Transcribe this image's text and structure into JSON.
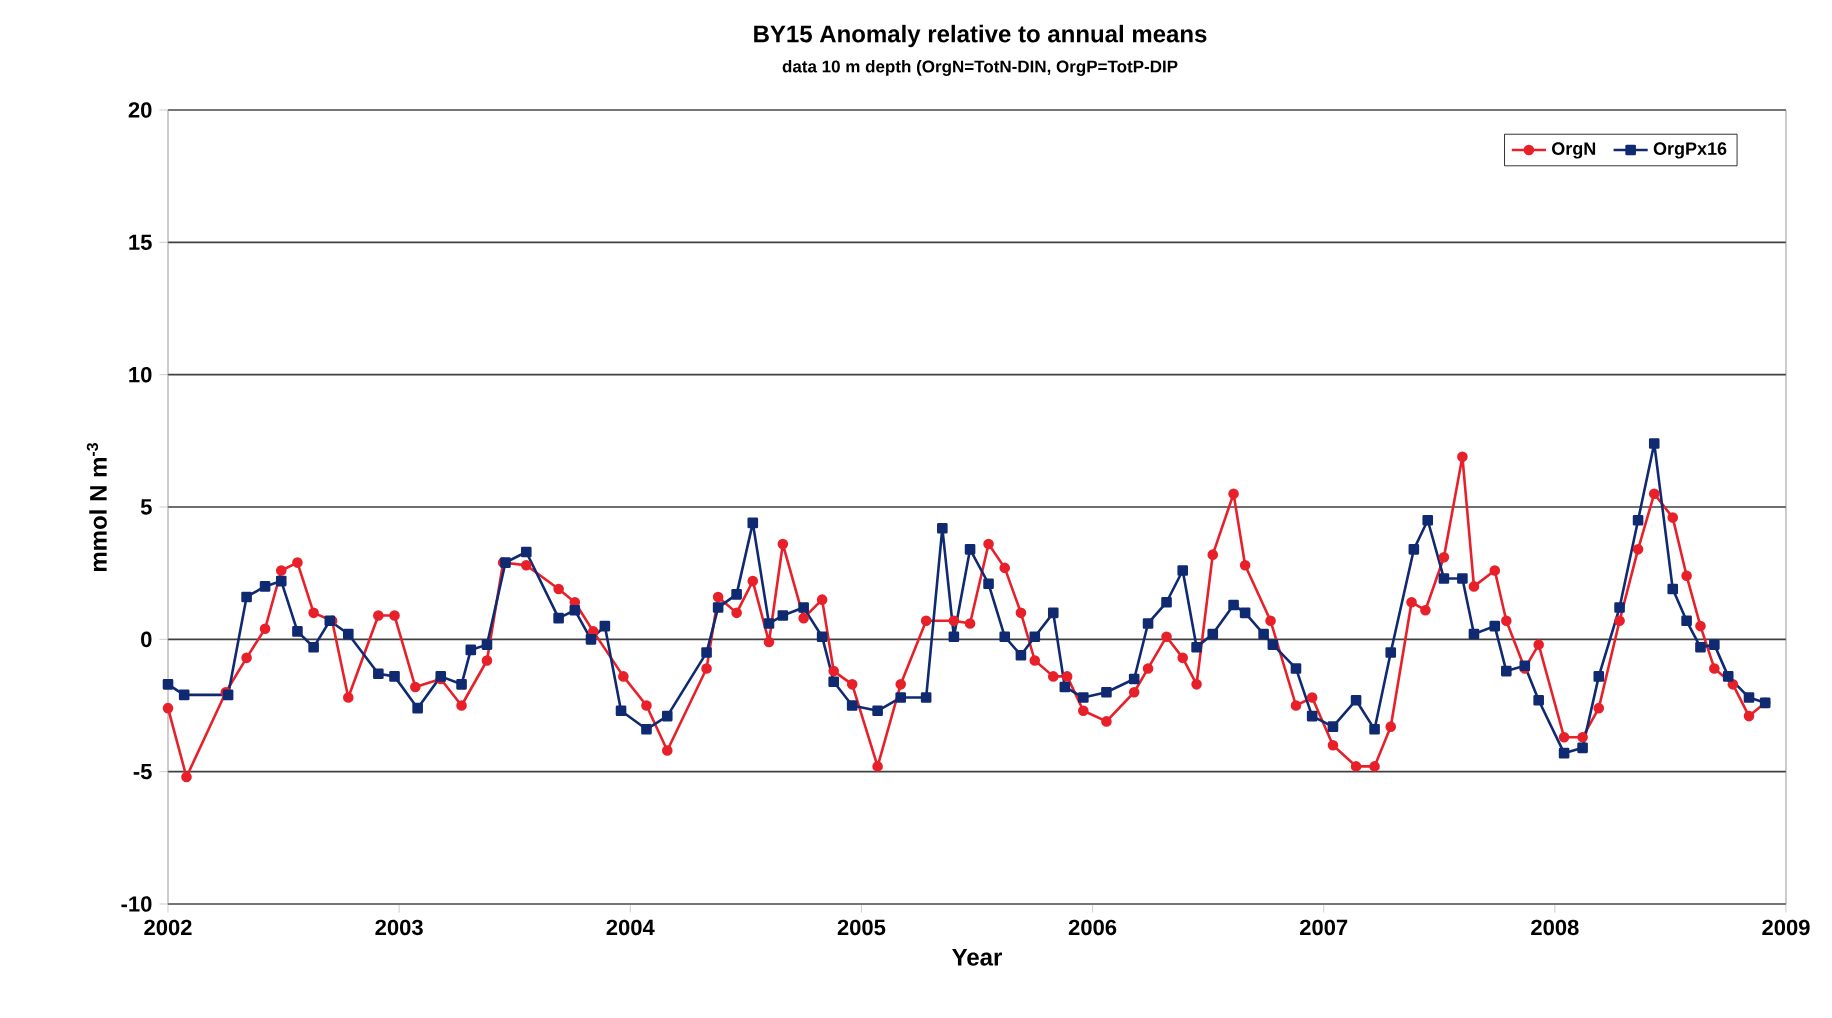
{
  "chart_data": {
    "type": "line",
    "title": "BY15 Anomaly relative to annual means",
    "subtitle": "data 10 m depth (OrgN=TotN-DIN, OrgP=TotP-DIP",
    "xlabel": "Year",
    "ylabel": "mmol N m$^{-3}$",
    "xlim": [
      2002,
      2009
    ],
    "xticks": [
      2002,
      2003,
      2004,
      2005,
      2006,
      2007,
      2008,
      2009
    ],
    "ylim": [
      -10,
      20
    ],
    "yticks": [
      -10,
      -5,
      0,
      5,
      10,
      15,
      20
    ],
    "grid": "y",
    "legend": "top right",
    "line_style": "solid",
    "series": [
      {
        "name": "OrgN",
        "color": "#e8202a",
        "marker": "circle",
        "x": [
          2002.0,
          2002.08,
          2002.25,
          2002.34,
          2002.42,
          2002.49,
          2002.56,
          2002.63,
          2002.71,
          2002.78,
          2002.91,
          2002.98,
          2003.07,
          2003.18,
          2003.27,
          2003.38,
          2003.45,
          2003.55,
          2003.69,
          2003.76,
          2003.84,
          2003.97,
          2004.07,
          2004.16,
          2004.33,
          2004.38,
          2004.46,
          2004.53,
          2004.6,
          2004.66,
          2004.75,
          2004.83,
          2004.88,
          2004.96,
          2005.07,
          2005.17,
          2005.28,
          2005.4,
          2005.47,
          2005.55,
          2005.62,
          2005.69,
          2005.75,
          2005.83,
          2005.89,
          2005.96,
          2006.06,
          2006.18,
          2006.24,
          2006.32,
          2006.39,
          2006.45,
          2006.52,
          2006.61,
          2006.66,
          2006.77,
          2006.88,
          2006.95,
          2007.04,
          2007.14,
          2007.22,
          2007.29,
          2007.38,
          2007.44,
          2007.52,
          2007.6,
          2007.65,
          2007.74,
          2007.79,
          2007.87,
          2007.93,
          2008.04,
          2008.12,
          2008.19,
          2008.28,
          2008.36,
          2008.43,
          2008.51,
          2008.57,
          2008.63,
          2008.69,
          2008.77,
          2008.84,
          2008.91
        ],
        "values": [
          -2.6,
          -5.2,
          -2.0,
          -0.7,
          0.4,
          2.6,
          2.9,
          1.0,
          0.7,
          -2.2,
          0.9,
          0.9,
          -1.8,
          -1.5,
          -2.5,
          -0.8,
          2.9,
          2.8,
          1.9,
          1.4,
          0.3,
          -1.4,
          -2.5,
          -4.2,
          -1.1,
          1.6,
          1.0,
          2.2,
          -0.1,
          3.6,
          0.8,
          1.5,
          -1.2,
          -1.7,
          -4.8,
          -1.7,
          0.7,
          0.7,
          0.6,
          3.6,
          2.7,
          1.0,
          -0.8,
          -1.4,
          -1.4,
          -2.7,
          -3.1,
          -2.0,
          -1.1,
          0.1,
          -0.7,
          -1.7,
          3.2,
          5.5,
          2.8,
          0.7,
          -2.5,
          -2.2,
          -4.0,
          -4.8,
          -4.8,
          -3.3,
          1.4,
          1.1,
          3.1,
          6.9,
          2.0,
          2.6,
          0.7,
          -1.1,
          -0.2,
          -3.7,
          -3.7,
          -2.6,
          0.7,
          3.4,
          5.5,
          4.6,
          2.4,
          0.5,
          -1.1,
          -1.7,
          -2.9,
          -2.4
        ]
      },
      {
        "name": "OrgPx16",
        "color": "#102a72",
        "marker": "square",
        "x": [
          2002.0,
          2002.07,
          2002.26,
          2002.34,
          2002.42,
          2002.49,
          2002.56,
          2002.63,
          2002.7,
          2002.78,
          2002.91,
          2002.98,
          2003.08,
          2003.18,
          2003.27,
          2003.31,
          2003.38,
          2003.46,
          2003.55,
          2003.69,
          2003.76,
          2003.83,
          2003.89,
          2003.96,
          2004.07,
          2004.16,
          2004.33,
          2004.38,
          2004.46,
          2004.53,
          2004.6,
          2004.66,
          2004.75,
          2004.83,
          2004.88,
          2004.96,
          2005.07,
          2005.17,
          2005.28,
          2005.35,
          2005.4,
          2005.47,
          2005.55,
          2005.62,
          2005.69,
          2005.75,
          2005.83,
          2005.88,
          2005.96,
          2006.06,
          2006.18,
          2006.24,
          2006.32,
          2006.39,
          2006.45,
          2006.52,
          2006.61,
          2006.66,
          2006.74,
          2006.78,
          2006.88,
          2006.95,
          2007.04,
          2007.14,
          2007.22,
          2007.29,
          2007.39,
          2007.45,
          2007.52,
          2007.6,
          2007.65,
          2007.74,
          2007.79,
          2007.87,
          2007.93,
          2008.04,
          2008.12,
          2008.19,
          2008.28,
          2008.36,
          2008.43,
          2008.51,
          2008.57,
          2008.63,
          2008.69,
          2008.75,
          2008.84,
          2008.91
        ],
        "values": [
          -1.7,
          -2.1,
          -2.1,
          1.6,
          2.0,
          2.2,
          0.3,
          -0.3,
          0.7,
          0.2,
          -1.3,
          -1.4,
          -2.6,
          -1.4,
          -1.7,
          -0.4,
          -0.2,
          2.9,
          3.3,
          0.8,
          1.1,
          0.0,
          0.5,
          -2.7,
          -3.4,
          -2.9,
          -0.5,
          1.2,
          1.7,
          4.4,
          0.6,
          0.9,
          1.2,
          0.1,
          -1.6,
          -2.5,
          -2.7,
          -2.2,
          -2.2,
          4.2,
          0.1,
          3.4,
          2.1,
          0.1,
          -0.6,
          0.1,
          1.0,
          -1.8,
          -2.2,
          -2.0,
          -1.5,
          0.6,
          1.4,
          2.6,
          -0.3,
          0.2,
          1.3,
          1.0,
          0.2,
          -0.2,
          -1.1,
          -2.9,
          -3.3,
          -2.3,
          -3.4,
          -0.5,
          3.4,
          4.5,
          2.3,
          2.3,
          0.2,
          0.5,
          -1.2,
          -1.0,
          -2.3,
          -4.3,
          -4.1,
          -1.4,
          1.2,
          4.5,
          7.4,
          1.9,
          0.7,
          -0.3,
          -0.2,
          -1.4,
          -2.2,
          -2.4
        ]
      }
    ]
  }
}
